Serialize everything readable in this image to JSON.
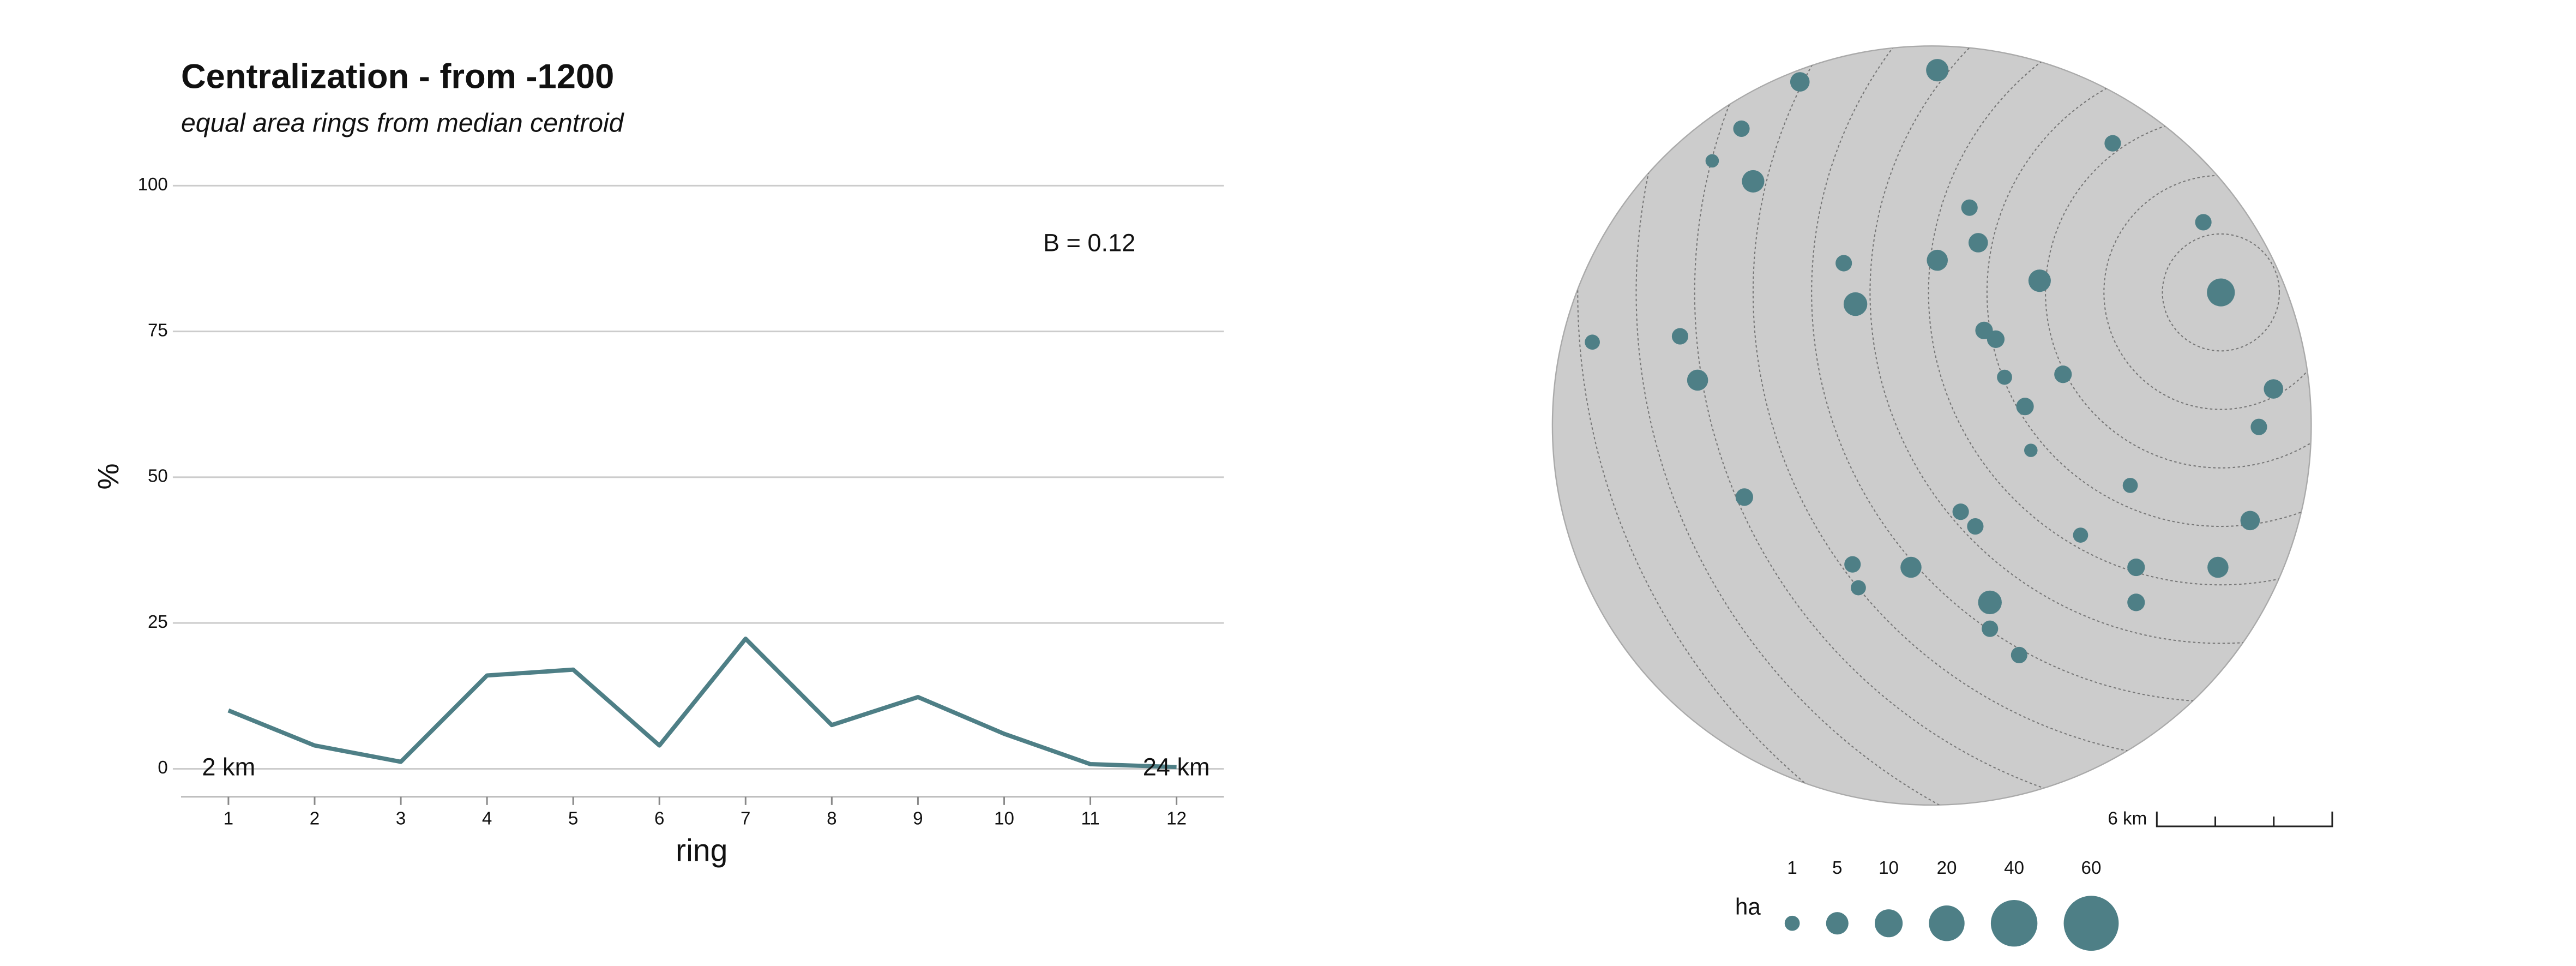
{
  "chart_data": [
    {
      "type": "line",
      "title": "Centralization - from -1200",
      "subtitle": "equal area rings from median centroid",
      "x_label": "ring",
      "y_label": "%",
      "x": [
        1,
        2,
        3,
        4,
        5,
        6,
        7,
        8,
        9,
        10,
        11,
        12
      ],
      "values": [
        10,
        4,
        1.2,
        16,
        17,
        4,
        22.3,
        7.5,
        12.3,
        6,
        0.8,
        0.3
      ],
      "color": "#4e7f86",
      "xlim": [
        0.45,
        12.55
      ],
      "xticks": [
        1,
        2,
        3,
        4,
        5,
        6,
        7,
        8,
        9,
        10,
        11,
        12
      ],
      "ylim": [
        -4.8,
        100
      ],
      "yticks": [
        0,
        25,
        50,
        75,
        100
      ],
      "grid": true,
      "annotations": [
        "B = 0.12",
        "2 km",
        "24 km"
      ]
    },
    {
      "type": "bubble",
      "x": [
        -14.4,
        -9.7,
        -16.4,
        -17.4,
        -16.0,
        -3.7,
        -0.6,
        -8.6,
        -12.9,
        -9.7,
        -8.3,
        -6.2,
        -12.5,
        0,
        -21.5,
        -18.5,
        -8.1,
        -7.7,
        -17.9,
        -7.4,
        -5.4,
        1.8,
        -6.7,
        1.3,
        -6.5,
        -3.1,
        -16.3,
        -8.9,
        -8.4,
        1.0,
        -4.8,
        -12.6,
        -10.6,
        -2.9,
        -0.1,
        -12.4,
        -7.9,
        -2.9,
        -7.9,
        -6.9
      ],
      "y": [
        7.2,
        7.6,
        5.6,
        4.5,
        3.8,
        5.1,
        2.4,
        2.9,
        1.0,
        1.1,
        1.7,
        0.4,
        -0.4,
        0,
        -1.7,
        -1.5,
        -1.3,
        -1.6,
        -3.0,
        -2.9,
        -2.8,
        -3.3,
        -3.9,
        -4.6,
        -5.4,
        -6.6,
        -7.0,
        -7.5,
        -8.0,
        -7.8,
        -8.3,
        -9.3,
        -9.4,
        -9.4,
        -9.4,
        -10.1,
        -10.6,
        -10.6,
        -11.5,
        -12.4
      ],
      "size": [
        3,
        5,
        1.5,
        0.5,
        5,
        1.5,
        1.5,
        1.5,
        1.5,
        4,
        3,
        5,
        6,
        10,
        1,
        1.5,
        2,
        2,
        4,
        1,
        2,
        3,
        2,
        1.5,
        0.5,
        1,
        2,
        1.5,
        1.5,
        3,
        1,
        1.5,
        4,
        2,
        4,
        1,
        6,
        2,
        1.5,
        1.5
      ],
      "color": "#4e7f86",
      "rings": [
        2,
        4,
        6,
        8,
        10,
        12,
        14,
        16,
        18,
        20,
        22,
        24
      ],
      "scalebar": {
        "value": 6,
        "label": "6 km"
      },
      "size_legend": {
        "title": "ha",
        "values": [
          1,
          5,
          10,
          20,
          40,
          60
        ]
      }
    }
  ]
}
